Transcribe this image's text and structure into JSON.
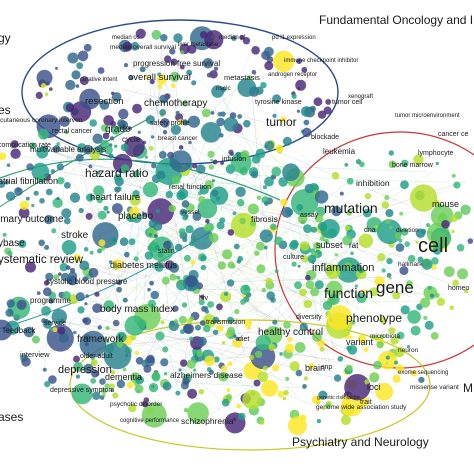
{
  "clusters": {
    "oncology": "Fundamental Oncology and Im",
    "psychiatry": "Psychiatry and Neurology",
    "left_top": "gy",
    "left_mid": "es",
    "left_bottom": "ases",
    "right_m": "M"
  },
  "terms": [
    "median os",
    "median pf",
    "pd l1 expression",
    "median overall survival",
    "liver metastase",
    "curative intent",
    "progression free survival",
    "immune checkpoint inhibitor",
    "overall survival",
    "metastasis",
    "androgen receptor",
    "nsclc",
    "chemotherapy",
    "resection",
    "tyrosine kinase",
    "xenograft",
    "rcutaneous coronary interven",
    "tumor",
    "tumor cell",
    "tumor microenvironment",
    "rectal cancer",
    "grade",
    "safety profile",
    "cycle",
    "breast cancer",
    "cancer ce",
    "complication rate",
    "multivariable analysis",
    "blockade",
    "leukemia",
    "lymphocyte",
    "hazard ratio",
    "infusion",
    "bone marrow",
    "atrial fibrillation",
    "heart failure",
    "renal function",
    "inhibition",
    "mouse",
    "imary outcome",
    "placebo",
    "vessel",
    "fibrosis",
    "assay",
    "mutation",
    "cell",
    "stroke",
    "dna",
    "deletion",
    "ybase",
    "statin",
    "subset",
    "rat",
    "ystematic review",
    "diabetes mellitus",
    "culture",
    "inflammation",
    "gene",
    "hallmark",
    "systolic blood pressure",
    "function",
    "homeo",
    "programme",
    "body mass index",
    "hiv",
    "diversity",
    "phenotype",
    "service",
    "feedback",
    "transmission",
    "healthy control",
    "framework",
    "variant",
    "interview",
    "older adult",
    "diet",
    "brain",
    "microbiota",
    "neuron",
    "depression",
    "dementia",
    "alzheimers disease",
    "snp",
    "exome sequencing",
    "missense variant",
    "depressive symptom",
    "loci",
    "trait",
    "genetic risk factor",
    "genome wide association study",
    "psychotic disorder",
    "schizophrenia",
    "cognitive performance"
  ]
}
